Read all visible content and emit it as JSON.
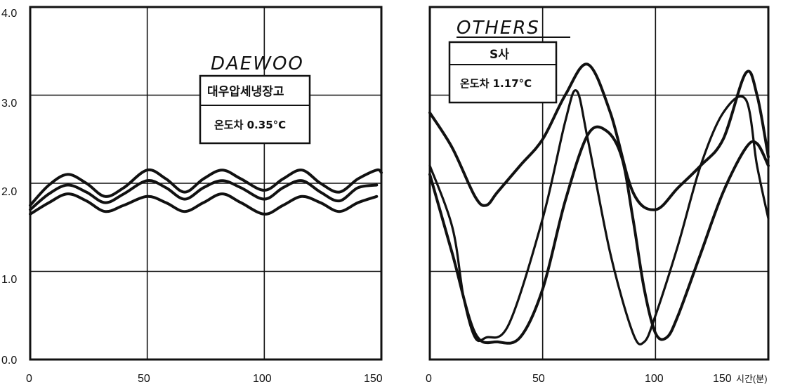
{
  "chart_data": [
    {
      "type": "line",
      "brand_label": "DAEWOO",
      "legend_title": "대우압세냉장고",
      "legend_value": "온도차 0.35°C",
      "xlim": [
        0,
        150
      ],
      "ylim": [
        0,
        4
      ],
      "x_ticks": [
        "0",
        "50",
        "100",
        "150"
      ],
      "y_ticks": [
        "0.0",
        "1.0",
        "2.0",
        "3.0",
        "4.0"
      ],
      "grid": true,
      "series": [
        {
          "x": [
            0,
            8,
            16,
            24,
            32,
            40,
            50,
            58,
            66,
            74,
            82,
            90,
            100,
            108,
            116,
            124,
            132,
            140,
            148,
            152
          ],
          "values": [
            1.75,
            1.98,
            2.1,
            2.0,
            1.85,
            1.95,
            2.15,
            2.05,
            1.9,
            2.05,
            2.15,
            2.05,
            1.92,
            2.05,
            2.15,
            2.0,
            1.9,
            2.05,
            2.15,
            2.12
          ]
        },
        {
          "x": [
            0,
            8,
            16,
            24,
            32,
            40,
            50,
            58,
            66,
            74,
            82,
            90,
            100,
            108,
            116,
            124,
            132,
            140,
            148
          ],
          "values": [
            1.7,
            1.88,
            1.98,
            1.9,
            1.78,
            1.88,
            2.03,
            1.95,
            1.82,
            1.95,
            2.03,
            1.95,
            1.82,
            1.95,
            2.03,
            1.9,
            1.8,
            1.95,
            1.98
          ]
        },
        {
          "x": [
            0,
            8,
            16,
            24,
            32,
            40,
            50,
            58,
            66,
            74,
            82,
            90,
            100,
            108,
            116,
            124,
            132,
            140,
            148
          ],
          "values": [
            1.65,
            1.78,
            1.88,
            1.8,
            1.68,
            1.75,
            1.85,
            1.78,
            1.68,
            1.78,
            1.88,
            1.78,
            1.65,
            1.75,
            1.85,
            1.78,
            1.68,
            1.78,
            1.85
          ]
        }
      ]
    },
    {
      "type": "line",
      "brand_label": "OTHERS",
      "legend_title": "S사",
      "legend_value": "온도차 1.17°C",
      "x_unit": "시간(분)",
      "xlim": [
        0,
        150
      ],
      "ylim": [
        0,
        4
      ],
      "x_ticks": [
        "0",
        "50",
        "100",
        "150"
      ],
      "grid": true,
      "series": [
        {
          "x": [
            0,
            10,
            20,
            25,
            30,
            40,
            50,
            60,
            70,
            80,
            90,
            100,
            110,
            120,
            130,
            140,
            145,
            150
          ],
          "values": [
            2.8,
            2.4,
            1.85,
            1.75,
            1.9,
            2.2,
            2.5,
            3.0,
            3.35,
            2.8,
            1.9,
            1.7,
            1.95,
            2.2,
            2.5,
            3.25,
            3.0,
            2.3
          ]
        },
        {
          "x": [
            0,
            10,
            15,
            20,
            25,
            35,
            50,
            60,
            65,
            70,
            80,
            90,
            95,
            100,
            110,
            120,
            130,
            140,
            145,
            150
          ],
          "values": [
            2.2,
            1.5,
            0.7,
            0.25,
            0.25,
            0.4,
            1.6,
            2.7,
            3.05,
            2.5,
            1.2,
            0.3,
            0.2,
            0.5,
            1.3,
            2.2,
            2.8,
            2.95,
            2.2,
            1.6
          ]
        },
        {
          "x": [
            0,
            10,
            20,
            30,
            40,
            50,
            60,
            70,
            78,
            85,
            90,
            95,
            100,
            105,
            110,
            120,
            130,
            140,
            145,
            150
          ],
          "values": [
            2.1,
            1.2,
            0.3,
            0.2,
            0.25,
            0.8,
            1.8,
            2.55,
            2.6,
            2.3,
            1.6,
            0.8,
            0.3,
            0.25,
            0.5,
            1.2,
            1.9,
            2.4,
            2.45,
            2.2
          ]
        }
      ]
    }
  ]
}
